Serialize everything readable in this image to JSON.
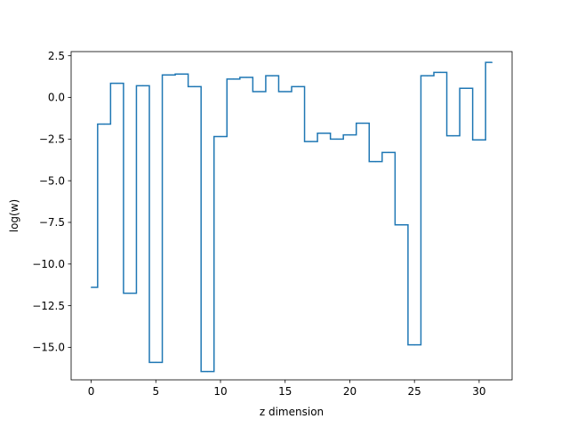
{
  "chart_data": {
    "type": "line",
    "drawstyle": "steps-mid",
    "title": "",
    "xlabel": "z dimension",
    "ylabel": "log(w)",
    "xlim": [
      -1.55,
      32.55
    ],
    "ylim": [
      -16.95,
      2.75
    ],
    "x_ticks": [
      0,
      5,
      10,
      15,
      20,
      25,
      30
    ],
    "x_tick_labels": [
      "0",
      "5",
      "10",
      "15",
      "20",
      "25",
      "30"
    ],
    "y_ticks": [
      2.5,
      0.0,
      -2.5,
      -5.0,
      -7.5,
      -10.0,
      -12.5,
      -15.0
    ],
    "y_tick_labels": [
      "2.5",
      "0.0",
      "−2.5",
      "−5.0",
      "−7.5",
      "−10.0",
      "−12.5",
      "−15.0"
    ],
    "grid": false,
    "legend": "none",
    "series": [
      {
        "color": "#1f77b4",
        "x": [
          0,
          1,
          2,
          3,
          4,
          5,
          6,
          7,
          8,
          9,
          10,
          11,
          12,
          13,
          14,
          15,
          16,
          17,
          18,
          19,
          20,
          21,
          22,
          23,
          24,
          25,
          26,
          27,
          28,
          29,
          30,
          31
        ],
        "y": [
          -11.4,
          -1.6,
          0.85,
          -11.75,
          0.7,
          -15.9,
          1.35,
          1.4,
          0.65,
          -16.45,
          -2.35,
          1.1,
          1.2,
          0.35,
          1.3,
          0.35,
          0.65,
          -2.65,
          -2.15,
          -2.5,
          -2.25,
          -1.55,
          -3.85,
          -3.3,
          -7.65,
          -14.85,
          1.3,
          1.5,
          -2.3,
          0.55,
          -2.55,
          2.1
        ]
      }
    ]
  }
}
